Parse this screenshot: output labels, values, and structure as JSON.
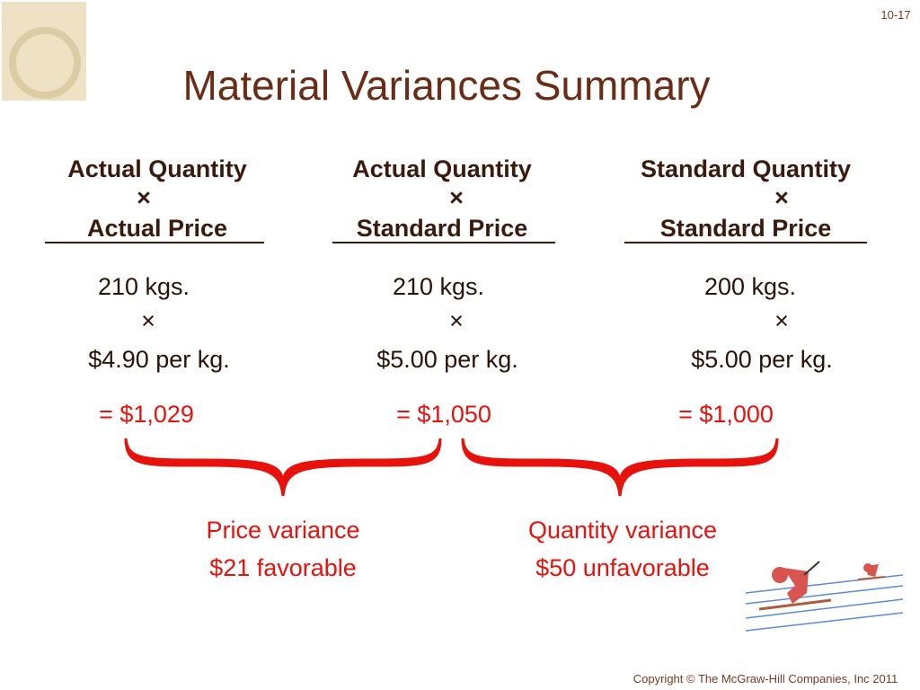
{
  "slide_number": "10-17",
  "title": "Material Variances Summary",
  "columns": [
    {
      "header_top": "Actual Quantity",
      "header_times": "×",
      "header_bottom": "Actual Price",
      "quantity": "210 kgs.",
      "times": "×",
      "price": "$4.90 per kg.",
      "total": "= $1,029"
    },
    {
      "header_top": "Actual Quantity",
      "header_times": "×",
      "header_bottom": "Standard Price",
      "quantity": "210 kgs.",
      "times": "×",
      "price": "$5.00 per kg.",
      "total": "= $1,050"
    },
    {
      "header_top": "Standard Quantity",
      "header_times": "×",
      "header_bottom": "Standard Price",
      "quantity": "200 kgs.",
      "times": "×",
      "price": "$5.00 per kg.",
      "total": "= $1,000"
    }
  ],
  "variances": [
    {
      "label": "Price variance",
      "amount": "$21 favorable"
    },
    {
      "label": "Quantity variance",
      "amount": "$50 unfavorable"
    }
  ],
  "copyright": "Copyright © The McGraw-Hill Companies, Inc 2011"
}
